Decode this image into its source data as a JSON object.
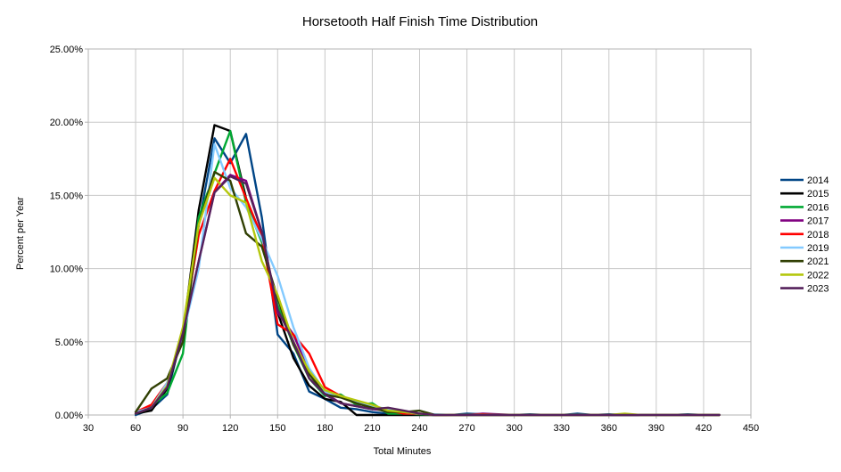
{
  "chart_data": {
    "type": "line",
    "title": "Horsetooth Half Finish Time Distribution",
    "xlabel": "Total Minutes",
    "ylabel": "Percent per Year",
    "xlim": [
      30,
      450
    ],
    "ylim": [
      0,
      25
    ],
    "x_ticks": [
      30,
      60,
      90,
      120,
      150,
      180,
      210,
      240,
      270,
      300,
      330,
      360,
      390,
      420,
      450
    ],
    "x_tick_labels": [
      "30",
      "60",
      "90",
      "120",
      "150",
      "180",
      "210",
      "240",
      "270",
      "300",
      "330",
      "360",
      "390",
      "420",
      "450"
    ],
    "y_ticks": [
      0,
      5,
      10,
      15,
      20,
      25
    ],
    "y_tick_labels": [
      "0.00%",
      "5.00%",
      "10.00%",
      "15.00%",
      "20.00%",
      "25.00%"
    ],
    "grid": true,
    "legend_position": "right",
    "x": [
      60,
      70,
      80,
      90,
      100,
      110,
      120,
      130,
      140,
      150,
      160,
      170,
      180,
      190,
      200,
      210,
      220,
      230,
      240,
      250,
      260,
      270,
      280,
      290,
      300,
      310,
      320,
      330,
      340,
      350,
      360,
      370,
      380,
      390,
      400,
      410,
      420,
      430
    ],
    "series": [
      {
        "name": "2014",
        "color": "#004586",
        "values": [
          0.0,
          0.4,
          1.4,
          5.8,
          13.0,
          18.9,
          17.2,
          19.2,
          13.5,
          5.5,
          4.2,
          1.6,
          1.1,
          0.5,
          0.4,
          0.2,
          0.1,
          0.1,
          0.05,
          0.0,
          0.0,
          0.1,
          0.05,
          0.0,
          0.0,
          0.05,
          0.0,
          0.0,
          0.1,
          0.0,
          0.05,
          0.0,
          0.0,
          0.0,
          0.0,
          0.05,
          0.0,
          0.0
        ]
      },
      {
        "name": "2015",
        "color": "#000000",
        "values": [
          0.1,
          0.3,
          1.8,
          5.5,
          14.0,
          19.8,
          19.4,
          14.8,
          12.0,
          7.0,
          3.9,
          2.0,
          1.1,
          0.9,
          0.0,
          0.0,
          0.0,
          0.0,
          0.0,
          0.0,
          0.0,
          0.0,
          0.0,
          0.0,
          0.0,
          0.0,
          0.0,
          0.0,
          0.0,
          0.0,
          0.0,
          0.0,
          0.0,
          0.0,
          0.0,
          0.0,
          0.0,
          0.0
        ]
      },
      {
        "name": "2016",
        "color": "#00a933",
        "values": [
          0.1,
          0.6,
          1.5,
          4.2,
          13.5,
          16.5,
          19.4,
          14.5,
          11.8,
          7.5,
          4.8,
          2.5,
          1.3,
          1.4,
          0.7,
          0.8,
          0.1,
          0.1,
          0.05,
          0.0,
          0.0,
          0.0,
          0.0,
          0.0,
          0.0,
          0.0,
          0.0,
          0.0,
          0.0,
          0.0,
          0.0,
          0.0,
          0.0,
          0.0,
          0.0,
          0.0,
          0.0,
          0.0
        ]
      },
      {
        "name": "2017",
        "color": "#800080",
        "values": [
          0.2,
          0.5,
          2.0,
          5.5,
          10.5,
          15.2,
          16.4,
          16.0,
          12.5,
          7.0,
          5.5,
          3.0,
          1.5,
          0.8,
          0.6,
          0.4,
          0.3,
          0.1,
          0.1,
          0.0,
          0.0,
          0.0,
          0.1,
          0.05,
          0.0,
          0.0,
          0.0,
          0.0,
          0.0,
          0.0,
          0.0,
          0.0,
          0.0,
          0.0,
          0.0,
          0.0,
          0.0,
          0.0
        ]
      },
      {
        "name": "2018",
        "color": "#ff0000",
        "values": [
          0.2,
          0.7,
          2.2,
          5.6,
          12.3,
          15.3,
          17.5,
          14.8,
          12.2,
          6.2,
          5.5,
          4.2,
          1.9,
          1.3,
          0.9,
          0.6,
          0.3,
          0.1,
          0.1,
          0.0,
          0.0,
          0.0,
          0.05,
          0.0,
          0.0,
          0.0,
          0.0,
          0.0,
          0.0,
          0.0,
          0.0,
          0.0,
          0.0,
          0.0,
          0.0,
          0.0,
          0.0,
          0.0
        ]
      },
      {
        "name": "2019",
        "color": "#83caff",
        "values": [
          0.2,
          0.5,
          2.2,
          5.5,
          10.0,
          18.5,
          15.5,
          14.2,
          12.0,
          9.5,
          6.0,
          3.2,
          1.6,
          1.2,
          0.9,
          0.6,
          0.4,
          0.2,
          0.1,
          0.05,
          0.0,
          0.0,
          0.0,
          0.0,
          0.0,
          0.0,
          0.0,
          0.0,
          0.0,
          0.0,
          0.0,
          0.0,
          0.0,
          0.0,
          0.0,
          0.0,
          0.0,
          0.0
        ]
      },
      {
        "name": "2021",
        "color": "#314004",
        "values": [
          0.2,
          1.8,
          2.5,
          5.0,
          13.0,
          16.6,
          16.0,
          12.4,
          11.5,
          8.0,
          4.8,
          2.8,
          1.4,
          1.2,
          0.8,
          0.5,
          0.2,
          0.2,
          0.3,
          0.0,
          0.0,
          0.0,
          0.0,
          0.0,
          0.0,
          0.0,
          0.0,
          0.0,
          0.0,
          0.0,
          0.0,
          0.0,
          0.0,
          0.0,
          0.0,
          0.0,
          0.0,
          0.0
        ]
      },
      {
        "name": "2022",
        "color": "#b4c70d",
        "values": [
          0.1,
          0.5,
          2.0,
          6.0,
          13.0,
          16.2,
          15.0,
          14.5,
          10.5,
          8.2,
          5.0,
          3.0,
          1.7,
          1.3,
          1.0,
          0.7,
          0.3,
          0.2,
          0.1,
          0.0,
          0.0,
          0.0,
          0.0,
          0.0,
          0.0,
          0.0,
          0.0,
          0.0,
          0.0,
          0.0,
          0.0,
          0.1,
          0.0,
          0.0,
          0.0,
          0.0,
          0.0,
          0.0
        ]
      },
      {
        "name": "2023",
        "color": "#55215b",
        "values": [
          0.1,
          0.5,
          1.9,
          5.6,
          10.5,
          15.2,
          16.3,
          15.8,
          12.5,
          7.2,
          5.0,
          2.5,
          1.4,
          0.8,
          0.6,
          0.4,
          0.5,
          0.3,
          0.1,
          0.0,
          0.0,
          0.0,
          0.0,
          0.0,
          0.0,
          0.0,
          0.0,
          0.0,
          0.0,
          0.0,
          0.0,
          0.0,
          0.0,
          0.0,
          0.0,
          0.0,
          0.0,
          0.0
        ]
      }
    ]
  }
}
